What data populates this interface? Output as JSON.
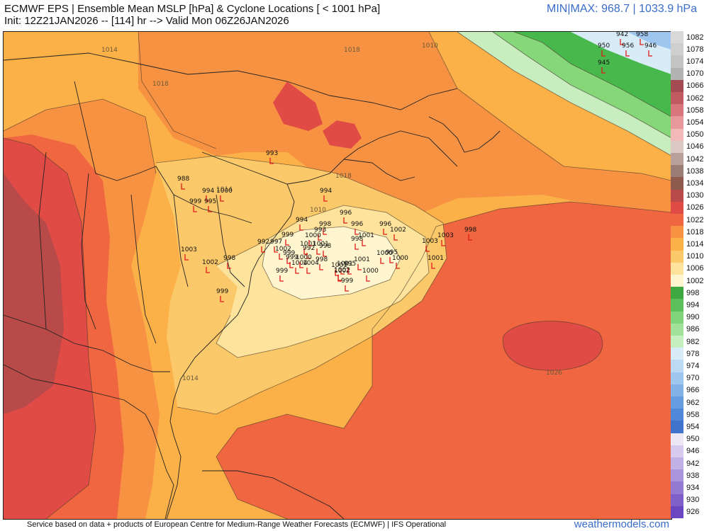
{
  "header": {
    "title": "ECMWF EPS | Ensemble Mean MSLP [hPa] & Cyclone Locations [ < 1001 hPa]",
    "init_line": "Init: 12Z21JAN2026 -- [114] hr --> Valid Mon 06Z26JAN2026",
    "minmax": "MIN|MAX: 968.7 | 1033.9 hPa"
  },
  "footer": {
    "credit": "Service based on data + products of European Centre for Medium-Range Weather Forecasts (ECMWF) | IFS Operational",
    "brand": "weathermodels.com"
  },
  "colors": {
    "ocean_base": "#fbb148",
    "band_1018": "#f79243",
    "band_1022": "#ef6640",
    "band_1026": "#e04b46",
    "band_1030": "#b84a4a",
    "band_1010": "#fbc969",
    "band_1006": "#fde39b",
    "band_1002": "#fff6cf",
    "green_hi": "#47b84c",
    "green_mid": "#86d67a",
    "green_lo": "#c8eec0",
    "low_marker": "#e01a1a",
    "land_outline": "#222222"
  },
  "isobar_labels": [
    "1014",
    "1018",
    "1010",
    "1018",
    "1014",
    "1018",
    "1010",
    "1026",
    "1014"
  ],
  "scale": [
    {
      "label": "1082",
      "color": "#d9d9d9"
    },
    {
      "label": "1078",
      "color": "#cfcfcf"
    },
    {
      "label": "1074",
      "color": "#c4c4c4"
    },
    {
      "label": "1070",
      "color": "#b3b3b3"
    },
    {
      "label": "1066",
      "color": "#a34a52"
    },
    {
      "label": "1062",
      "color": "#c25a62"
    },
    {
      "label": "1058",
      "color": "#d9767c"
    },
    {
      "label": "1054",
      "color": "#e8989b"
    },
    {
      "label": "1050",
      "color": "#f3b9b9"
    },
    {
      "label": "1046",
      "color": "#dcc9c4"
    },
    {
      "label": "1042",
      "color": "#b9a09a"
    },
    {
      "label": "1038",
      "color": "#9a7e76"
    },
    {
      "label": "1034",
      "color": "#8f5a4e"
    },
    {
      "label": "1030",
      "color": "#b84a4a"
    },
    {
      "label": "1026",
      "color": "#e04b46"
    },
    {
      "label": "1022",
      "color": "#ef6640"
    },
    {
      "label": "1018",
      "color": "#f79243"
    },
    {
      "label": "1014",
      "color": "#fbb148"
    },
    {
      "label": "1010",
      "color": "#fbc969"
    },
    {
      "label": "1006",
      "color": "#fde39b"
    },
    {
      "label": "1002",
      "color": "#fff6cf"
    },
    {
      "label": "998",
      "color": "#3da840"
    },
    {
      "label": "994",
      "color": "#5cc05a"
    },
    {
      "label": "990",
      "color": "#7fd47a"
    },
    {
      "label": "986",
      "color": "#a1e19a"
    },
    {
      "label": "982",
      "color": "#c6efbf"
    },
    {
      "label": "978",
      "color": "#d8ecf7"
    },
    {
      "label": "974",
      "color": "#bcdaf3"
    },
    {
      "label": "970",
      "color": "#9fc6ee"
    },
    {
      "label": "966",
      "color": "#82b1e7"
    },
    {
      "label": "962",
      "color": "#669ce0"
    },
    {
      "label": "958",
      "color": "#4f88d8"
    },
    {
      "label": "954",
      "color": "#3f73cc"
    },
    {
      "label": "950",
      "color": "#ece6f5"
    },
    {
      "label": "946",
      "color": "#d6cbee"
    },
    {
      "label": "942",
      "color": "#c1b0e6"
    },
    {
      "label": "938",
      "color": "#ab95dd"
    },
    {
      "label": "934",
      "color": "#957ad4"
    },
    {
      "label": "930",
      "color": "#7f60ca"
    },
    {
      "label": "926",
      "color": "#6a47c0"
    }
  ],
  "cyclones": [
    {
      "v": "993"
    },
    {
      "v": "988"
    },
    {
      "v": "994"
    },
    {
      "v": "1000"
    },
    {
      "v": "999"
    },
    {
      "v": "995"
    },
    {
      "v": "1003"
    },
    {
      "v": "1002"
    },
    {
      "v": "998"
    },
    {
      "v": "999"
    },
    {
      "v": "994"
    },
    {
      "v": "996"
    },
    {
      "v": "998"
    },
    {
      "v": "993"
    },
    {
      "v": "994"
    },
    {
      "v": "996"
    },
    {
      "v": "998"
    },
    {
      "v": "1001"
    },
    {
      "v": "996"
    },
    {
      "v": "1002"
    },
    {
      "v": "1003"
    },
    {
      "v": "1003"
    },
    {
      "v": "998"
    },
    {
      "v": "992"
    },
    {
      "v": "997"
    },
    {
      "v": "999"
    },
    {
      "v": "999"
    },
    {
      "v": "1001"
    },
    {
      "v": "998"
    },
    {
      "v": "1000"
    },
    {
      "v": "1001"
    },
    {
      "v": "1001"
    },
    {
      "v": "1002"
    },
    {
      "v": "992"
    },
    {
      "v": "998"
    },
    {
      "v": "1002"
    },
    {
      "v": "999"
    },
    {
      "v": "1004"
    },
    {
      "v": "1000"
    },
    {
      "v": "1004"
    },
    {
      "v": "999"
    },
    {
      "v": "1001"
    },
    {
      "v": "1002"
    },
    {
      "v": "999"
    },
    {
      "v": "995"
    },
    {
      "v": "1001"
    },
    {
      "v": "1000"
    },
    {
      "v": "1000"
    },
    {
      "v": "995"
    },
    {
      "v": "1000"
    },
    {
      "v": "1001"
    },
    {
      "v": "950"
    },
    {
      "v": "942"
    },
    {
      "v": "958"
    },
    {
      "v": "956"
    },
    {
      "v": "946"
    },
    {
      "v": "945"
    }
  ]
}
